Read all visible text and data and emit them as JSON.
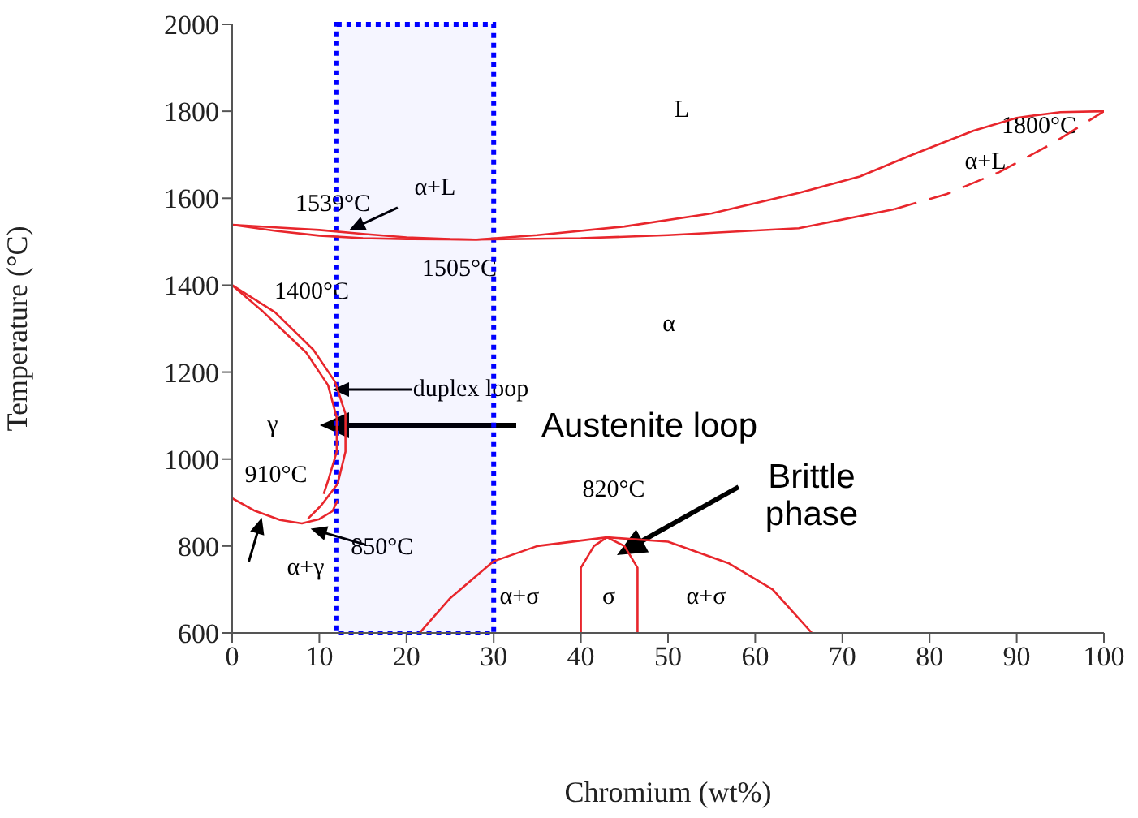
{
  "chart_data": {
    "type": "line",
    "xlabel": "Chromium (wt%)",
    "ylabel": "Temperature (°C)",
    "xlim": [
      0,
      100
    ],
    "xticks": [
      0,
      10,
      20,
      30,
      40,
      50,
      60,
      70,
      80,
      90,
      100
    ],
    "ylim": [
      600,
      2000
    ],
    "yticks": [
      600,
      800,
      1000,
      1200,
      1400,
      1600,
      1800,
      2000
    ],
    "marker": "none",
    "line_style": "solid",
    "series": [
      {
        "color": "#e8262c",
        "x": [
          0,
          5,
          10,
          15,
          20,
          25,
          28,
          35,
          45,
          55,
          65,
          72,
          78,
          85,
          90,
          95,
          100
        ],
        "values": [
          1539,
          1533,
          1527,
          1518,
          1510,
          1506,
          1505,
          1515,
          1535,
          1565,
          1612,
          1650,
          1700,
          1755,
          1785,
          1798,
          1800
        ]
      },
      {
        "color": "#e8262c",
        "x": [
          0,
          5,
          10,
          15,
          20,
          28,
          40,
          50,
          65,
          76
        ],
        "values": [
          1539,
          1525,
          1514,
          1508,
          1506,
          1505,
          1508,
          1515,
          1531,
          1575
        ]
      },
      {
        "color": "#e8262c",
        "line_style": "dashed",
        "x": [
          76,
          82,
          88,
          94,
          100
        ],
        "values": [
          1575,
          1610,
          1660,
          1725,
          1800
        ]
      },
      {
        "color": "#e8262c",
        "x": [
          0,
          4.9,
          9.3,
          11.8,
          13,
          13,
          12.1,
          10.2,
          8.7
        ],
        "values": [
          1400,
          1338,
          1252,
          1178,
          1104,
          1017,
          943,
          893,
          863
        ]
      },
      {
        "color": "#e8262c",
        "x": [
          0,
          3.5,
          8.5,
          11,
          12,
          12,
          11,
          10.5
        ],
        "values": [
          1400,
          1340,
          1245,
          1170,
          1095,
          1017,
          950,
          920
        ]
      },
      {
        "color": "#e8262c",
        "x": [
          0,
          2.5,
          5.5,
          8,
          10,
          11.5,
          12.1
        ],
        "values": [
          910,
          882,
          860,
          852,
          862,
          880,
          905
        ]
      },
      {
        "color": "#e8262c",
        "x": [
          21.5,
          25,
          30,
          35,
          43,
          50,
          57,
          62,
          66.5
        ],
        "values": [
          600,
          680,
          765,
          800,
          820,
          810,
          760,
          700,
          600
        ]
      },
      {
        "color": "#e8262c",
        "x": [
          40,
          40,
          41.5,
          43,
          45,
          46.5,
          46.5
        ],
        "values": [
          600,
          750,
          800,
          820,
          800,
          750,
          600
        ]
      }
    ],
    "bands": [
      {
        "axis": "x",
        "from": 12,
        "to": 30,
        "color": "#0000ff"
      }
    ],
    "annotations": [
      "L",
      "1800°C",
      "α+L",
      "1539°C",
      {
        "text": "α+L",
        "x": 13.4,
        "y": 1526
      },
      "1505°C",
      "α",
      "1400°C",
      "duplex loop",
      "γ",
      "Austenite loop",
      "910°C",
      "820°C",
      "Brittle phase",
      {
        "text": "850°C",
        "x": 9,
        "y": 840
      },
      {
        "text": "α+γ",
        "x": 3.4,
        "y": 865
      },
      "α+σ",
      "σ",
      "α+σ"
    ]
  }
}
